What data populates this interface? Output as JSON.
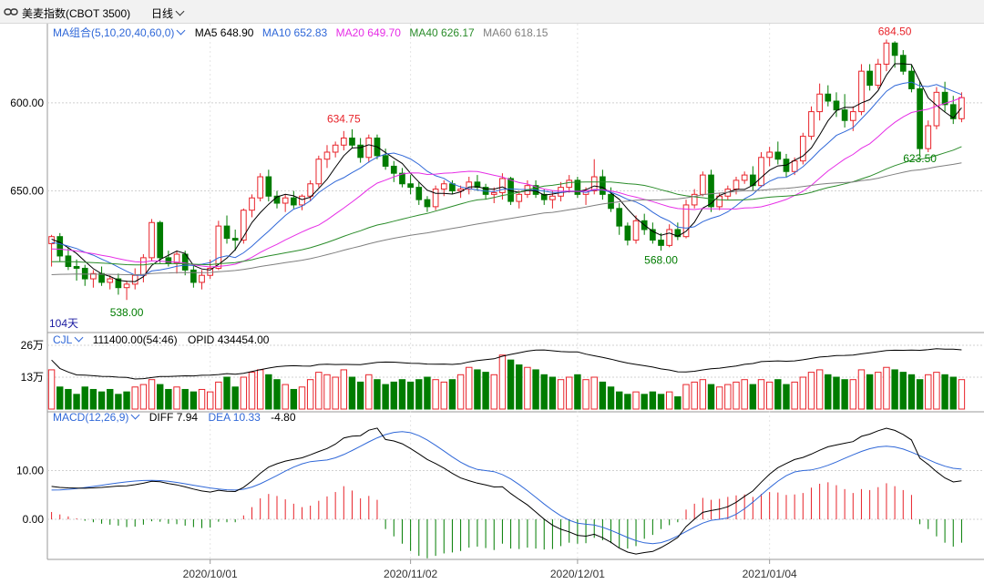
{
  "header": {
    "instrument": "美麦指数(CBOT 3500)",
    "period": "日线"
  },
  "colors": {
    "up": "#e8232a",
    "down": "#007c00",
    "ma5": "#000000",
    "ma10": "#3068d8",
    "ma20": "#e62ee6",
    "ma40": "#2a8c2a",
    "ma60": "#7f7f7f"
  },
  "price_panel": {
    "ma_title": "MA组合(5,10,20,40,60,0)",
    "ma_values": [
      {
        "label": "MA5",
        "value": "648.90"
      },
      {
        "label": "MA10",
        "value": "652.83"
      },
      {
        "label": "MA20",
        "value": "649.70"
      },
      {
        "label": "MA40",
        "value": "626.17"
      },
      {
        "label": "MA60",
        "value": "618.15"
      }
    ],
    "y_ticks": [
      "650.00",
      "600.00"
    ],
    "annotations": {
      "high1": "634.75",
      "high2": "684.50",
      "low1": "538.00",
      "low2": "568.00",
      "low3": "623.50",
      "days": "104天"
    }
  },
  "volume_panel": {
    "title": "CJL",
    "value": "111400.00(54:46)",
    "opid_label": "OPID",
    "opid_value": "434454.00",
    "y_ticks": [
      "26万",
      "13万"
    ]
  },
  "macd_panel": {
    "title": "MACD(12,26,9)",
    "diff_label": "DIFF",
    "diff_value": "7.94",
    "dea_label": "DEA",
    "dea_value": "10.33",
    "macd_value": "-4.80",
    "y_ticks": [
      "10.00",
      "0.00"
    ]
  },
  "x_axis": [
    "2020/10/01",
    "2020/11/02",
    "2020/12/01",
    "2021/01/04"
  ],
  "chart_data": {
    "type": "candlestick",
    "series_info": "daily OHLC, volume (万) and MACD histogram",
    "price_ylim": [
      520,
      695
    ],
    "y_ticks": [
      600,
      650
    ],
    "x_ticks": [
      "2020/10/01",
      "2020/11/02",
      "2020/12/01",
      "2021/01/04"
    ],
    "candles": [
      [
        570,
        575,
        557,
        574
      ],
      [
        574,
        576,
        560,
        563
      ],
      [
        563,
        568,
        555,
        557
      ],
      [
        557,
        561,
        549,
        556
      ],
      [
        556,
        558,
        546,
        550
      ],
      [
        550,
        555,
        545,
        553
      ],
      [
        553,
        557,
        546,
        548
      ],
      [
        548,
        552,
        544,
        550
      ],
      [
        550,
        553,
        541,
        545
      ],
      [
        545,
        549,
        538,
        547
      ],
      [
        547,
        556,
        544,
        552
      ],
      [
        552,
        564,
        548,
        562
      ],
      [
        562,
        584,
        560,
        582
      ],
      [
        582,
        583,
        559,
        562
      ],
      [
        562,
        566,
        557,
        559
      ],
      [
        559,
        566,
        553,
        564
      ],
      [
        564,
        566,
        552,
        555
      ],
      [
        555,
        558,
        545,
        548
      ],
      [
        548,
        555,
        544,
        552
      ],
      [
        552,
        561,
        550,
        556
      ],
      [
        556,
        583,
        555,
        580
      ],
      [
        580,
        586,
        570,
        573
      ],
      [
        573,
        578,
        566,
        572
      ],
      [
        572,
        590,
        570,
        589
      ],
      [
        589,
        598,
        585,
        596
      ],
      [
        596,
        610,
        594,
        608
      ],
      [
        608,
        612,
        594,
        597
      ],
      [
        597,
        600,
        590,
        593
      ],
      [
        593,
        598,
        588,
        596
      ],
      [
        596,
        600,
        590,
        592
      ],
      [
        592,
        598,
        589,
        597
      ],
      [
        597,
        606,
        594,
        604
      ],
      [
        604,
        620,
        602,
        618
      ],
      [
        618,
        626,
        613,
        622
      ],
      [
        622,
        628,
        619,
        626
      ],
      [
        626,
        634,
        623,
        630
      ],
      [
        630,
        635,
        624,
        626
      ],
      [
        626,
        630,
        616,
        619
      ],
      [
        619,
        632,
        616,
        630
      ],
      [
        630,
        632,
        618,
        620
      ],
      [
        620,
        624,
        612,
        614
      ],
      [
        614,
        617,
        605,
        610
      ],
      [
        610,
        613,
        602,
        604
      ],
      [
        604,
        609,
        598,
        602
      ],
      [
        602,
        605,
        592,
        595
      ],
      [
        595,
        597,
        588,
        591
      ],
      [
        591,
        603,
        589,
        601
      ],
      [
        601,
        606,
        597,
        604
      ],
      [
        604,
        606,
        598,
        600
      ],
      [
        600,
        603,
        596,
        601
      ],
      [
        601,
        608,
        598,
        605
      ],
      [
        605,
        609,
        600,
        602
      ],
      [
        602,
        604,
        595,
        598
      ],
      [
        598,
        602,
        593,
        599
      ],
      [
        599,
        610,
        595,
        607
      ],
      [
        607,
        608,
        592,
        594
      ],
      [
        594,
        600,
        590,
        598
      ],
      [
        598,
        606,
        596,
        603
      ],
      [
        603,
        606,
        596,
        598
      ],
      [
        598,
        601,
        592,
        595
      ],
      [
        595,
        600,
        590,
        597
      ],
      [
        597,
        605,
        594,
        602
      ],
      [
        602,
        609,
        599,
        606
      ],
      [
        606,
        608,
        596,
        598
      ],
      [
        598,
        602,
        592,
        600
      ],
      [
        600,
        618,
        598,
        608
      ],
      [
        608,
        612,
        595,
        598
      ],
      [
        598,
        602,
        588,
        590
      ],
      [
        590,
        593,
        575,
        580
      ],
      [
        580,
        582,
        569,
        572
      ],
      [
        572,
        586,
        570,
        583
      ],
      [
        583,
        587,
        575,
        578
      ],
      [
        578,
        582,
        570,
        572
      ],
      [
        572,
        576,
        566,
        569
      ],
      [
        569,
        581,
        568,
        578
      ],
      [
        578,
        582,
        572,
        574
      ],
      [
        574,
        595,
        573,
        592
      ],
      [
        592,
        601,
        590,
        598
      ],
      [
        598,
        611,
        597,
        609
      ],
      [
        609,
        612,
        588,
        591
      ],
      [
        591,
        599,
        589,
        597
      ],
      [
        597,
        603,
        595,
        601
      ],
      [
        601,
        608,
        598,
        606
      ],
      [
        606,
        611,
        604,
        609
      ],
      [
        609,
        614,
        600,
        603
      ],
      [
        603,
        622,
        602,
        619
      ],
      [
        619,
        625,
        614,
        622
      ],
      [
        622,
        628,
        615,
        618
      ],
      [
        618,
        621,
        608,
        611
      ],
      [
        611,
        619,
        609,
        617
      ],
      [
        617,
        633,
        615,
        631
      ],
      [
        631,
        648,
        629,
        645
      ],
      [
        645,
        661,
        640,
        655
      ],
      [
        655,
        660,
        648,
        651
      ],
      [
        651,
        656,
        642,
        646
      ],
      [
        646,
        655,
        636,
        640
      ],
      [
        640,
        648,
        634,
        645
      ],
      [
        645,
        672,
        643,
        668
      ],
      [
        668,
        672,
        657,
        660
      ],
      [
        660,
        675,
        658,
        672
      ],
      [
        672,
        686,
        668,
        684
      ],
      [
        684,
        685,
        670,
        677
      ],
      [
        677,
        680,
        666,
        668
      ],
      [
        668,
        672,
        656,
        658
      ],
      [
        658,
        662,
        620,
        624
      ],
      [
        624,
        640,
        622,
        637
      ],
      [
        637,
        659,
        635,
        656
      ],
      [
        656,
        662,
        645,
        649
      ],
      [
        649,
        654,
        638,
        641
      ],
      [
        641,
        656,
        639,
        653
      ]
    ],
    "volume": [
      [
        16,
        true
      ],
      [
        9,
        false
      ],
      [
        8,
        false
      ],
      [
        6,
        false
      ],
      [
        9,
        false
      ],
      [
        8,
        false
      ],
      [
        7,
        false
      ],
      [
        8,
        false
      ],
      [
        6,
        false
      ],
      [
        7,
        false
      ],
      [
        9,
        true
      ],
      [
        10,
        true
      ],
      [
        12,
        true
      ],
      [
        10,
        false
      ],
      [
        8,
        false
      ],
      [
        9,
        true
      ],
      [
        8,
        false
      ],
      [
        7,
        false
      ],
      [
        8,
        true
      ],
      [
        7,
        true
      ],
      [
        11,
        true
      ],
      [
        13,
        false
      ],
      [
        9,
        false
      ],
      [
        13,
        true
      ],
      [
        15,
        true
      ],
      [
        16,
        true
      ],
      [
        14,
        false
      ],
      [
        12,
        false
      ],
      [
        10,
        true
      ],
      [
        8,
        false
      ],
      [
        9,
        true
      ],
      [
        12,
        true
      ],
      [
        15,
        true
      ],
      [
        14,
        true
      ],
      [
        13,
        true
      ],
      [
        16,
        true
      ],
      [
        13,
        false
      ],
      [
        11,
        false
      ],
      [
        14,
        true
      ],
      [
        12,
        false
      ],
      [
        10,
        false
      ],
      [
        11,
        false
      ],
      [
        12,
        false
      ],
      [
        11,
        false
      ],
      [
        12,
        false
      ],
      [
        13,
        false
      ],
      [
        12,
        true
      ],
      [
        11,
        true
      ],
      [
        12,
        false
      ],
      [
        14,
        true
      ],
      [
        17,
        true
      ],
      [
        16,
        false
      ],
      [
        15,
        false
      ],
      [
        14,
        true
      ],
      [
        22,
        true
      ],
      [
        20,
        false
      ],
      [
        18,
        false
      ],
      [
        17,
        true
      ],
      [
        16,
        false
      ],
      [
        14,
        false
      ],
      [
        13,
        false
      ],
      [
        12,
        true
      ],
      [
        13,
        true
      ],
      [
        14,
        false
      ],
      [
        12,
        true
      ],
      [
        13,
        true
      ],
      [
        11,
        false
      ],
      [
        9,
        false
      ],
      [
        7,
        false
      ],
      [
        6,
        false
      ],
      [
        7,
        true
      ],
      [
        6,
        false
      ],
      [
        7,
        false
      ],
      [
        6,
        false
      ],
      [
        7,
        true
      ],
      [
        5,
        false
      ],
      [
        10,
        true
      ],
      [
        11,
        true
      ],
      [
        12,
        true
      ],
      [
        10,
        false
      ],
      [
        9,
        true
      ],
      [
        10,
        true
      ],
      [
        11,
        true
      ],
      [
        12,
        true
      ],
      [
        10,
        false
      ],
      [
        12,
        true
      ],
      [
        11,
        true
      ],
      [
        12,
        false
      ],
      [
        10,
        false
      ],
      [
        11,
        true
      ],
      [
        13,
        true
      ],
      [
        15,
        true
      ],
      [
        16,
        true
      ],
      [
        14,
        false
      ],
      [
        13,
        false
      ],
      [
        12,
        false
      ],
      [
        12,
        true
      ],
      [
        16,
        true
      ],
      [
        14,
        false
      ],
      [
        15,
        true
      ],
      [
        17,
        true
      ],
      [
        16,
        false
      ],
      [
        15,
        false
      ],
      [
        14,
        false
      ],
      [
        12,
        false
      ],
      [
        14,
        true
      ],
      [
        15,
        true
      ],
      [
        14,
        false
      ],
      [
        13,
        false
      ],
      [
        12,
        true
      ]
    ],
    "macd_hist": [
      1.5,
      1.0,
      0.6,
      0.2,
      -0.3,
      -0.6,
      -0.9,
      -1.1,
      -1.3,
      -1.6,
      -1.5,
      -1.1,
      -0.4,
      -0.5,
      -0.9,
      -1.0,
      -1.3,
      -1.6,
      -1.8,
      -1.7,
      -0.5,
      -0.6,
      -0.6,
      0.8,
      2.5,
      4.3,
      5.2,
      4.8,
      4.1,
      3.2,
      2.5,
      2.8,
      3.8,
      4.7,
      5.6,
      6.8,
      5.9,
      4.3,
      4.8,
      4.0,
      -2.0,
      -3.5,
      -5.0,
      -6.5,
      -7.5,
      -8.0,
      -7.5,
      -7.0,
      -6.8,
      -6.5,
      -5.8,
      -5.6,
      -5.9,
      -6.3,
      -5.0,
      -6.0,
      -6.1,
      -5.8,
      -6.0,
      -6.2,
      -6.1,
      -5.5,
      -4.8,
      -5.0,
      -4.9,
      -3.8,
      -4.3,
      -4.9,
      -5.8,
      -6.0,
      -5.5,
      -4.0,
      -3.2,
      -2.0,
      -1.2,
      -0.6,
      2.0,
      3.2,
      4.4,
      4.0,
      4.2,
      4.6,
      4.9,
      5.1,
      4.6,
      5.2,
      5.6,
      5.5,
      5.0,
      5.1,
      5.4,
      6.5,
      7.3,
      7.6,
      7.0,
      6.2,
      5.4,
      6.2,
      6.0,
      6.6,
      7.4,
      6.8,
      6.0,
      5.0,
      -1.0,
      -2.0,
      -3.5,
      -4.8,
      -5.6,
      -4.8
    ]
  }
}
